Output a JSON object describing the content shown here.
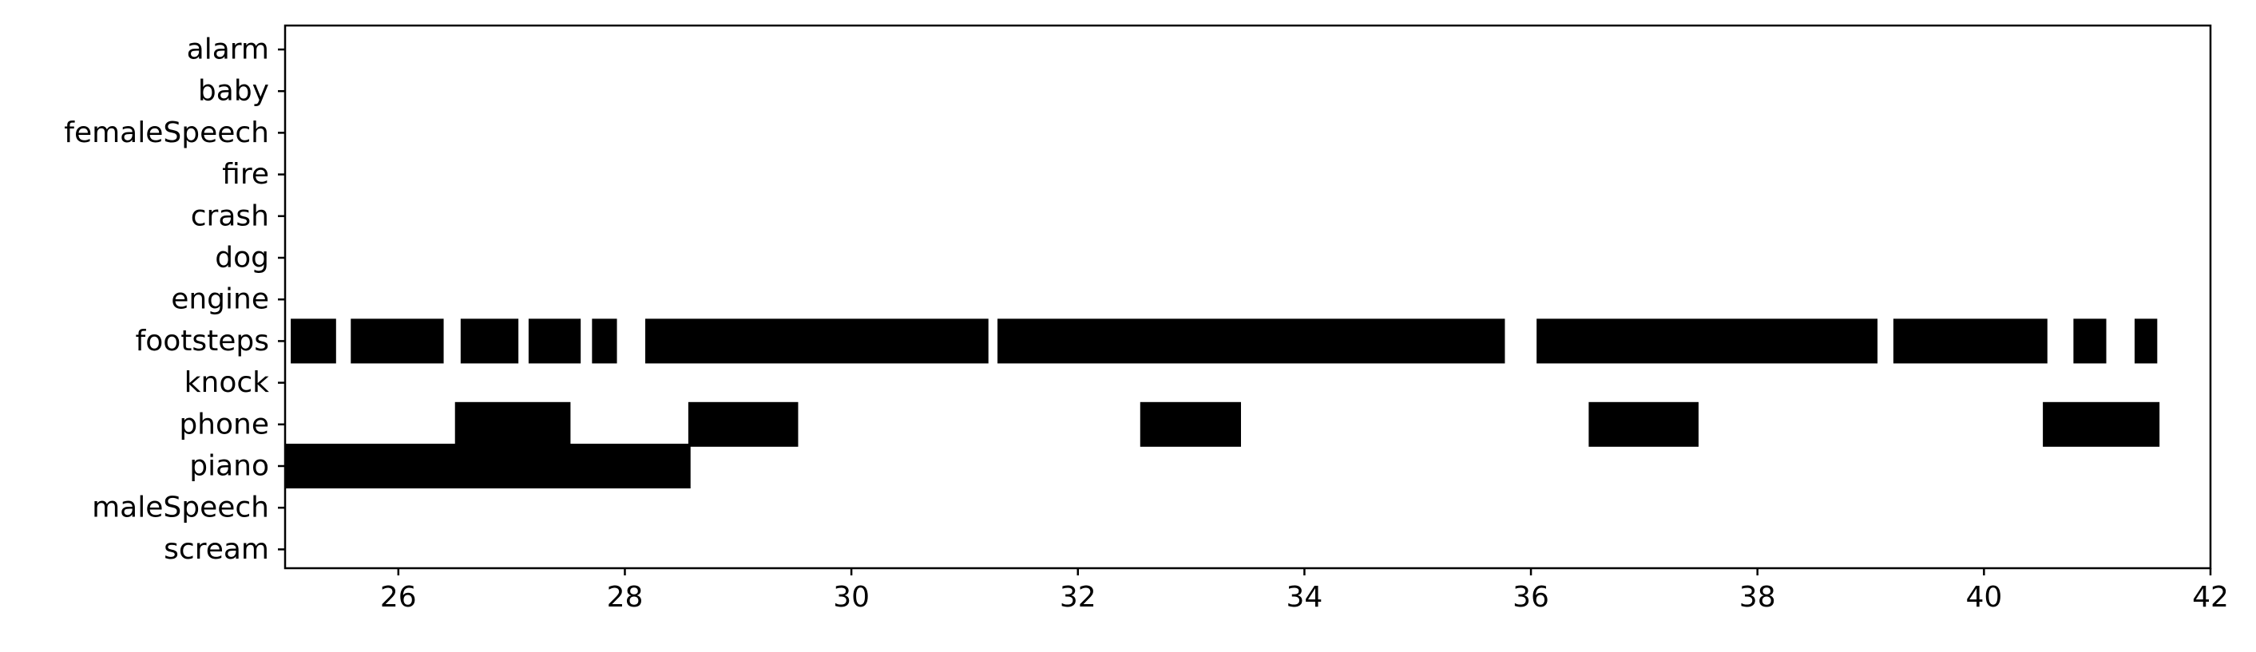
{
  "chart_data": {
    "type": "broken_barh",
    "title": "",
    "xlabel": "",
    "ylabel": "",
    "xlim": [
      25,
      42
    ],
    "x_ticks": [
      26,
      28,
      30,
      32,
      34,
      36,
      38,
      40,
      42
    ],
    "x_tick_labels": [
      "26",
      "28",
      "30",
      "32",
      "34",
      "36",
      "38",
      "40",
      "42"
    ],
    "categories": [
      "alarm",
      "baby",
      "femaleSpeech",
      "fire",
      "crash",
      "dog",
      "engine",
      "footsteps",
      "knock",
      "phone",
      "piano",
      "maleSpeech",
      "scream"
    ],
    "bar_color": "#000000",
    "grid": false,
    "legend": "none",
    "events": [
      {
        "label": "footsteps",
        "start": 25.05,
        "end": 25.45
      },
      {
        "label": "footsteps",
        "start": 25.58,
        "end": 26.4
      },
      {
        "label": "footsteps",
        "start": 26.55,
        "end": 27.06
      },
      {
        "label": "footsteps",
        "start": 27.15,
        "end": 27.61
      },
      {
        "label": "footsteps",
        "start": 27.71,
        "end": 27.93
      },
      {
        "label": "footsteps",
        "start": 28.18,
        "end": 31.21
      },
      {
        "label": "footsteps",
        "start": 31.29,
        "end": 35.77
      },
      {
        "label": "footsteps",
        "start": 36.05,
        "end": 39.06
      },
      {
        "label": "footsteps",
        "start": 39.2,
        "end": 40.56
      },
      {
        "label": "footsteps",
        "start": 40.79,
        "end": 41.08
      },
      {
        "label": "footsteps",
        "start": 41.33,
        "end": 41.53
      },
      {
        "label": "phone",
        "start": 26.5,
        "end": 27.52
      },
      {
        "label": "phone",
        "start": 28.56,
        "end": 29.53
      },
      {
        "label": "phone",
        "start": 32.55,
        "end": 33.44
      },
      {
        "label": "phone",
        "start": 36.51,
        "end": 37.48
      },
      {
        "label": "phone",
        "start": 40.52,
        "end": 41.55
      },
      {
        "label": "piano",
        "start": 25.0,
        "end": 28.58
      }
    ]
  }
}
